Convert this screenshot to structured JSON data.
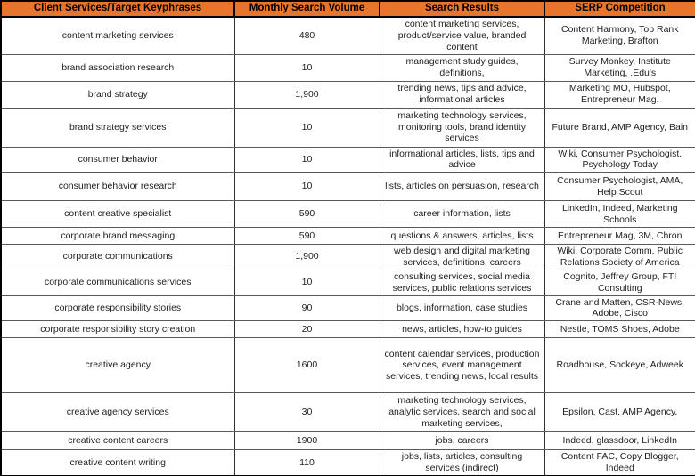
{
  "table": {
    "columns": [
      "Client Services/Target Keyphrases",
      "Monthly Search Volume",
      "Search Results",
      "SERP Competition"
    ],
    "rows": [
      [
        "content marketing services",
        "480",
        "content marketing services, product/service value, branded content",
        "Content Harmony, Top Rank Marketing, Brafton"
      ],
      [
        "brand association research",
        "10",
        "management study guides, definitions,",
        "Survey Monkey, Institute Marketing, .Edu's"
      ],
      [
        "brand strategy",
        "1,900",
        "trending news, tips and advice, informational articles",
        "Marketing MO, Hubspot, Entrepreneur Mag."
      ],
      [
        "brand strategy services",
        "10",
        "marketing technology services, monitoring tools, brand identity services",
        "Future Brand, AMP Agency, Bain"
      ],
      [
        "consumer behavior",
        "10",
        "informational articles, lists, tips and advice",
        "Wiki, Consumer Psychologist. Psychology Today"
      ],
      [
        "consumer behavior research",
        "10",
        "lists, articles on persuasion, research",
        "Consumer Psychologist, AMA, Help Scout"
      ],
      [
        "content creative specialist",
        "590",
        "career information, lists",
        "LinkedIn, Indeed, Marketing Schools"
      ],
      [
        "corporate brand messaging",
        "590",
        "questions & answers, articles, lists",
        "Entrepreneur Mag, 3M, Chron"
      ],
      [
        "corporate communications",
        "1,900",
        "web design and digital marketing services, definitions, careers",
        "Wiki, Corporate Comm, Public Relations Society of America"
      ],
      [
        "corporate communications services",
        "10",
        "consulting services, social media services, public relations services",
        "Cognito, Jeffrey Group, FTI Consulting"
      ],
      [
        "corporate responsibility stories",
        "90",
        "blogs, information, case studies",
        "Crane and Matten, CSR-News, Adobe, Cisco"
      ],
      [
        "corporate responsibility story creation",
        "20",
        "news, articles, how-to guides",
        "Nestle, TOMS Shoes, Adobe"
      ],
      [
        "creative agency",
        "1600",
        "content calendar services, production services, event management services, trending news, local results",
        "Roadhouse, Sockeye, Adweek"
      ],
      [
        "creative agency services",
        "30",
        "marketing technology services, analytic services, search and social marketing services,",
        "Epsilon, Cast, AMP Agency,"
      ],
      [
        "creative content careers",
        "1900",
        "jobs, careers",
        "Indeed, glassdoor, LinkedIn"
      ],
      [
        "creative content writing",
        "110",
        "jobs, lists, articles, consulting services (indirect)",
        "Content FAC, Copy Blogger, Indeed"
      ]
    ]
  },
  "colors": {
    "header_bg": "#E9742B",
    "header_text": "#000000",
    "body_text": "#1F1F1F",
    "grid_line": "#5A5A5A",
    "outer_border": "#000000"
  }
}
